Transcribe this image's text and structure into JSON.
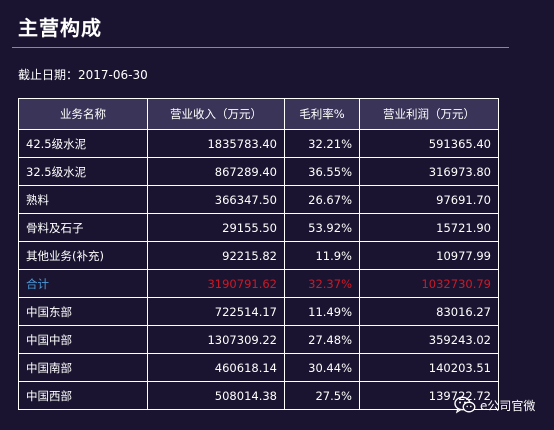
{
  "title": "主营构成",
  "as_of": "截止日期：2017-06-30",
  "table": {
    "headers": [
      "业务名称",
      "营业收入（万元）",
      "毛利率%",
      "营业利润（万元）"
    ],
    "rows": [
      {
        "name": "42.5级水泥",
        "revenue": "1835783.40",
        "margin": "32.21%",
        "profit": "591365.40"
      },
      {
        "name": "32.5级水泥",
        "revenue": "867289.40",
        "margin": "36.55%",
        "profit": "316973.80"
      },
      {
        "name": "熟料",
        "revenue": "366347.50",
        "margin": "26.67%",
        "profit": "97691.70"
      },
      {
        "name": "骨料及石子",
        "revenue": "29155.50",
        "margin": "53.92%",
        "profit": "15721.90"
      },
      {
        "name": "其他业务(补充)",
        "revenue": "92215.82",
        "margin": "11.9%",
        "profit": "10977.99"
      },
      {
        "name": "合计",
        "revenue": "3190791.62",
        "margin": "32.37%",
        "profit": "1032730.79"
      },
      {
        "name": "中国东部",
        "revenue": "722514.17",
        "margin": "11.49%",
        "profit": "83016.27"
      },
      {
        "name": "中国中部",
        "revenue": "1307309.22",
        "margin": "27.48%",
        "profit": "359243.02"
      },
      {
        "name": "中国南部",
        "revenue": "460618.14",
        "margin": "30.44%",
        "profit": "140203.51"
      },
      {
        "name": "中国西部",
        "revenue": "508014.38",
        "margin": "27.5%",
        "profit": "139722.72"
      }
    ]
  },
  "watermark": {
    "text": "e公司官微",
    "icon": "wechat-icon"
  },
  "colors": {
    "background": "#1b1430",
    "header_bg": "#3a3558",
    "total_label": "#4a9ad8",
    "total_value": "#c91a28"
  }
}
